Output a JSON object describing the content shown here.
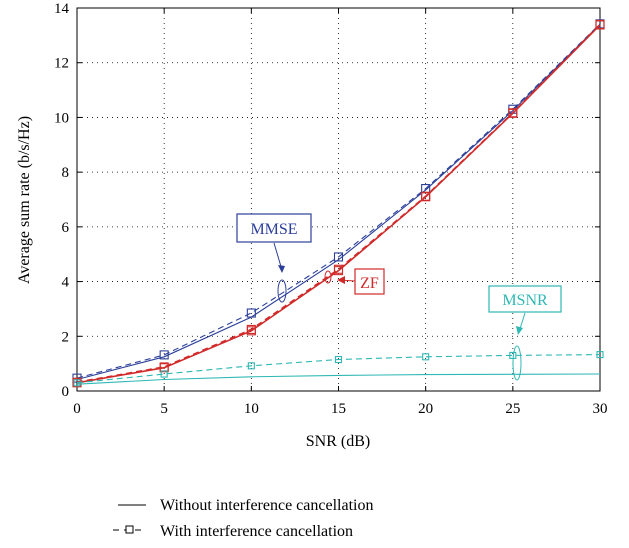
{
  "chart_data": {
    "type": "line",
    "title": "",
    "xlabel": "SNR (dB)",
    "ylabel": "Average sum rate (b/s/Hz)",
    "xlim": [
      0,
      30
    ],
    "ylim": [
      0,
      14
    ],
    "xticks": [
      0,
      5,
      10,
      15,
      20,
      25,
      30
    ],
    "yticks": [
      0,
      2,
      4,
      6,
      8,
      10,
      12,
      14
    ],
    "grid": true,
    "legend": [
      {
        "label": "Without interference cancellation",
        "style": "solid"
      },
      {
        "label": "With interference cancellation",
        "style": "dashed-square"
      }
    ],
    "annotations": [
      {
        "text": "MMSE",
        "color": "#2b3f9a"
      },
      {
        "text": "ZF",
        "color": "#d12a2a"
      },
      {
        "text": "MSNR",
        "color": "#2fb8b4"
      }
    ],
    "series": [
      {
        "group": "MMSE",
        "style": "solid",
        "color": "#2b3f9a",
        "x": [
          0,
          5,
          10,
          15,
          20,
          25,
          30
        ],
        "y": [
          0.42,
          1.25,
          2.7,
          4.8,
          7.35,
          10.25,
          13.4
        ]
      },
      {
        "group": "MMSE",
        "style": "dashed-square",
        "color": "#2b3f9a",
        "x": [
          0,
          5,
          10,
          15,
          20,
          25,
          30
        ],
        "y": [
          0.47,
          1.32,
          2.85,
          4.9,
          7.4,
          10.3,
          13.42
        ]
      },
      {
        "group": "ZF",
        "style": "solid",
        "color": "#d12a2a",
        "x": [
          0,
          5,
          10,
          15,
          20,
          25,
          30
        ],
        "y": [
          0.3,
          0.85,
          2.2,
          4.4,
          7.1,
          10.15,
          13.38
        ]
      },
      {
        "group": "ZF",
        "style": "dashed-square",
        "color": "#d12a2a",
        "x": [
          0,
          5,
          10,
          15,
          20,
          25,
          30
        ],
        "y": [
          0.32,
          0.88,
          2.25,
          4.45,
          7.12,
          10.17,
          13.4
        ]
      },
      {
        "group": "MSNR",
        "style": "solid",
        "color": "#2fb8b4",
        "x": [
          0,
          5,
          10,
          15,
          20,
          25,
          30
        ],
        "y": [
          0.25,
          0.42,
          0.52,
          0.57,
          0.6,
          0.61,
          0.62
        ]
      },
      {
        "group": "MSNR",
        "style": "dashed-square",
        "color": "#2fb8b4",
        "x": [
          0,
          5,
          10,
          15,
          20,
          25,
          30
        ],
        "y": [
          0.3,
          0.62,
          0.92,
          1.15,
          1.25,
          1.3,
          1.33
        ]
      }
    ]
  }
}
